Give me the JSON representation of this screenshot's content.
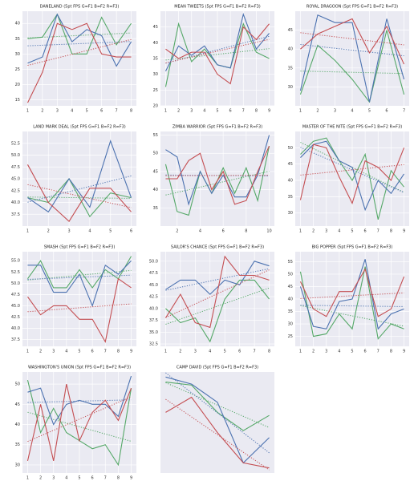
{
  "chart_data": [
    {
      "type": "line",
      "title": "DANELAND (5pt FPS G=F1 B=F2 R=F3)",
      "x": [
        1,
        2,
        3,
        4,
        5,
        6,
        7,
        8
      ],
      "xlim": [
        0.65,
        8.35
      ],
      "xticks": [
        1,
        2,
        3,
        4,
        5,
        6,
        7,
        8
      ],
      "ylim": [
        13,
        44
      ],
      "yticks": [
        15,
        20,
        25,
        30,
        35,
        40
      ],
      "grid": true,
      "series": [
        {
          "color": "#55a868",
          "values": [
            35,
            35.5,
            43,
            30,
            30,
            42,
            33,
            40
          ]
        },
        {
          "color": "#4c72b0",
          "values": [
            27,
            29,
            43,
            34,
            38,
            36,
            26,
            34
          ]
        },
        {
          "color": "#c44e52",
          "values": [
            14,
            24,
            40,
            38,
            40,
            30,
            29,
            29
          ]
        }
      ]
    },
    {
      "type": "line",
      "title": "MEAN TWEETS (5pt FPS G=F1 B=F2 R=F3)",
      "x": [
        1,
        2,
        3,
        4,
        5,
        6,
        7,
        8,
        9
      ],
      "xlim": [
        0.6,
        9.4
      ],
      "xticks": [
        1,
        2,
        3,
        4,
        5,
        6,
        7,
        8,
        9
      ],
      "ylim": [
        20,
        50
      ],
      "yticks": [
        20,
        25,
        30,
        35,
        40,
        45
      ],
      "grid": true,
      "series": [
        {
          "color": "#55a868",
          "values": [
            26,
            46,
            34,
            38,
            33,
            32,
            46,
            37,
            35
          ]
        },
        {
          "color": "#4c72b0",
          "values": [
            31,
            39,
            36,
            39,
            33,
            32,
            49,
            38,
            43
          ]
        },
        {
          "color": "#c44e52",
          "values": [
            38,
            35,
            37,
            37,
            30,
            27,
            45,
            41,
            46
          ]
        }
      ]
    },
    {
      "type": "line",
      "title": "ROYAL DRAGOON (5pt FPS G=F1 B=F2 R=F3)",
      "x": [
        1,
        2,
        3,
        4,
        5,
        6,
        7
      ],
      "xlim": [
        0.7,
        7.3
      ],
      "xticks": [
        1,
        2,
        3,
        4,
        5,
        6,
        7
      ],
      "ylim": [
        25,
        50
      ],
      "yticks": [
        30,
        35,
        40,
        45
      ],
      "grid": true,
      "series": [
        {
          "color": "#55a868",
          "values": [
            28,
            41,
            37,
            32,
            26,
            45,
            28
          ]
        },
        {
          "color": "#4c72b0",
          "values": [
            29,
            49,
            47,
            47,
            26,
            48,
            32
          ]
        },
        {
          "color": "#c44e52",
          "values": [
            40,
            44,
            46,
            48,
            39,
            46,
            36
          ]
        }
      ]
    },
    {
      "type": "line",
      "title": "LAND MARK DEAL (5pt FPS G=F1 B=F2 R=F3)",
      "x": [
        1,
        2,
        3,
        4,
        5,
        6
      ],
      "xlim": [
        0.75,
        6.25
      ],
      "xticks": [
        1,
        2,
        3,
        4,
        5,
        6
      ],
      "ylim": [
        35,
        55
      ],
      "yticks": [
        37.5,
        {
          "value": 40,
          "label": "40.0"
        },
        42.5,
        {
          "value": 45,
          "label": "45.0"
        },
        47.5,
        {
          "value": 50,
          "label": "50.0"
        },
        52.5
      ],
      "grid": true,
      "series": [
        {
          "color": "#55a868",
          "values": [
            41,
            40,
            45,
            37,
            42,
            41
          ]
        },
        {
          "color": "#4c72b0",
          "values": [
            41,
            38,
            45,
            39,
            53,
            41
          ]
        },
        {
          "color": "#c44e52",
          "values": [
            48,
            40,
            36,
            43,
            43,
            38
          ]
        }
      ]
    },
    {
      "type": "line",
      "title": "ZIMBA WARRIOR (5pt FPS G=F1 B=F2 R=F3)",
      "x": [
        1,
        2,
        3,
        4,
        5,
        6,
        7,
        8,
        9,
        10
      ],
      "xlim": [
        0.55,
        10.45
      ],
      "xticks": [
        2,
        4,
        6,
        8,
        10
      ],
      "ylim": [
        30,
        56
      ],
      "yticks": [
        35,
        40,
        45,
        50,
        55
      ],
      "grid": true,
      "series": [
        {
          "color": "#55a868",
          "values": [
            47,
            34,
            33,
            45,
            39,
            46,
            39,
            46,
            37,
            52
          ]
        },
        {
          "color": "#4c72b0",
          "values": [
            51,
            49,
            36,
            45,
            39,
            44,
            38,
            38,
            44,
            55
          ]
        },
        {
          "color": "#c44e52",
          "values": [
            43,
            43,
            48,
            50,
            40,
            45,
            36,
            37,
            45,
            52
          ]
        }
      ]
    },
    {
      "type": "line",
      "title": "MASTER OF THE NITE (5pt FPS G=F1 B=F2 R=F3)",
      "x": [
        1,
        2,
        3,
        4,
        5,
        6,
        7,
        8,
        9
      ],
      "xlim": [
        0.6,
        9.4
      ],
      "xticks": [
        1,
        2,
        3,
        4,
        5,
        6,
        7,
        8,
        9
      ],
      "ylim": [
        26,
        55
      ],
      "yticks": [
        30,
        35,
        40,
        45,
        50
      ],
      "grid": true,
      "series": [
        {
          "color": "#55a868",
          "values": [
            48,
            52,
            53,
            46,
            40,
            48,
            28,
            43,
            38
          ]
        },
        {
          "color": "#4c72b0",
          "values": [
            47,
            51,
            52,
            46,
            44,
            31,
            40,
            36,
            42
          ]
        },
        {
          "color": "#c44e52",
          "values": [
            34,
            51,
            50,
            41,
            33,
            46,
            44,
            40,
            50
          ]
        }
      ]
    },
    {
      "type": "line",
      "title": "SMASH (5pt FPS G=F1 B=F2 R=F3)",
      "x": [
        1,
        2,
        3,
        4,
        5,
        6,
        7,
        8,
        9
      ],
      "xlim": [
        0.6,
        9.4
      ],
      "xticks": [
        1,
        2,
        3,
        4,
        5,
        6,
        7,
        8,
        9
      ],
      "ylim": [
        36,
        57
      ],
      "yticks": [
        37.5,
        {
          "value": 40,
          "label": "40.0"
        },
        42.5,
        {
          "value": 45,
          "label": "45.0"
        },
        47.5,
        {
          "value": 50,
          "label": "50.0"
        },
        52.5,
        {
          "value": 55,
          "label": "55.0"
        }
      ],
      "grid": true,
      "series": [
        {
          "color": "#55a868",
          "values": [
            51,
            55,
            49,
            49,
            53,
            49,
            53,
            51,
            56
          ]
        },
        {
          "color": "#4c72b0",
          "values": [
            54,
            54,
            48,
            48,
            52,
            45,
            54,
            52,
            55
          ]
        },
        {
          "color": "#c44e52",
          "values": [
            47,
            43,
            45,
            45,
            42,
            42,
            37,
            51,
            49
          ]
        }
      ]
    },
    {
      "type": "line",
      "title": "SAILOR'S CHANCE (5pt FPS G=F1 B=F2 R=F3)",
      "x": [
        1,
        2,
        3,
        4,
        5,
        6,
        7,
        8
      ],
      "xlim": [
        0.65,
        8.35
      ],
      "xticks": [
        1,
        2,
        3,
        4,
        5,
        6,
        7,
        8
      ],
      "ylim": [
        32,
        52
      ],
      "yticks": [
        32.5,
        {
          "value": 35,
          "label": "35.0"
        },
        37.5,
        {
          "value": 40,
          "label": "40.0"
        },
        42.5,
        {
          "value": 45,
          "label": "45.0"
        },
        47.5,
        {
          "value": 50,
          "label": "50.0"
        }
      ],
      "grid": true,
      "series": [
        {
          "color": "#55a868",
          "values": [
            40,
            37,
            38,
            33,
            42,
            46,
            46,
            42
          ]
        },
        {
          "color": "#4c72b0",
          "values": [
            44,
            46,
            46,
            43,
            46,
            45,
            50,
            49
          ]
        },
        {
          "color": "#c44e52",
          "values": [
            38,
            43,
            37,
            36,
            51,
            47,
            47,
            46
          ]
        }
      ]
    },
    {
      "type": "line",
      "title": "BIG POPPER (5pt FPS G=F1 B=F2 R=F3)",
      "x": [
        1,
        2,
        3,
        4,
        5,
        6,
        7,
        8,
        9
      ],
      "xlim": [
        0.6,
        9.4
      ],
      "xticks": [
        1,
        2,
        3,
        4,
        5,
        6,
        7,
        8,
        9
      ],
      "ylim": [
        21,
        59
      ],
      "yticks": [
        25,
        30,
        35,
        40,
        45,
        50,
        55
      ],
      "grid": true,
      "series": [
        {
          "color": "#55a868",
          "values": [
            51,
            25,
            26,
            34,
            28,
            53,
            24,
            30,
            28
          ]
        },
        {
          "color": "#4c72b0",
          "values": [
            45,
            29,
            28,
            39,
            40,
            56,
            28,
            34,
            36
          ]
        },
        {
          "color": "#c44e52",
          "values": [
            47,
            36,
            33,
            43,
            43,
            52,
            33,
            36,
            49
          ]
        }
      ]
    },
    {
      "type": "line",
      "title": "WASHINGTON'S UNION (5pt FPS G=F1 B=F2 R=F3)",
      "x": [
        1,
        2,
        3,
        4,
        5,
        6,
        7,
        8,
        9
      ],
      "xlim": [
        0.6,
        9.4
      ],
      "xticks": [
        1,
        2,
        3,
        4,
        5,
        6,
        7,
        8,
        9
      ],
      "ylim": [
        28,
        53
      ],
      "yticks": [
        30,
        35,
        40,
        45,
        50
      ],
      "grid": true,
      "series": [
        {
          "color": "#55a868",
          "values": [
            51,
            38,
            44,
            38,
            36,
            34,
            35,
            30,
            49
          ]
        },
        {
          "color": "#4c72b0",
          "values": [
            48,
            49,
            40,
            45,
            46,
            45,
            45,
            42,
            52
          ]
        },
        {
          "color": "#c44e52",
          "values": [
            31,
            45,
            31,
            50,
            36,
            43,
            46,
            41,
            49
          ]
        }
      ]
    },
    {
      "type": "line",
      "title": "CAMP DAVID (5pt FPS G=F1 B=F2 R=F3)",
      "x": [
        1,
        2,
        3,
        4,
        5
      ],
      "xlim": [
        0.8,
        5.2
      ],
      "xticks": [],
      "ylim": [
        0,
        100
      ],
      "yticks": [],
      "grid": true,
      "series": [
        {
          "color": "#55a868",
          "values": [
            90,
            87,
            60,
            42,
            57
          ]
        },
        {
          "color": "#4c72b0",
          "values": [
            95,
            88,
            70,
            10,
            35
          ]
        },
        {
          "color": "#c44e52",
          "values": [
            60,
            75,
            40,
            10,
            5
          ]
        }
      ]
    }
  ]
}
